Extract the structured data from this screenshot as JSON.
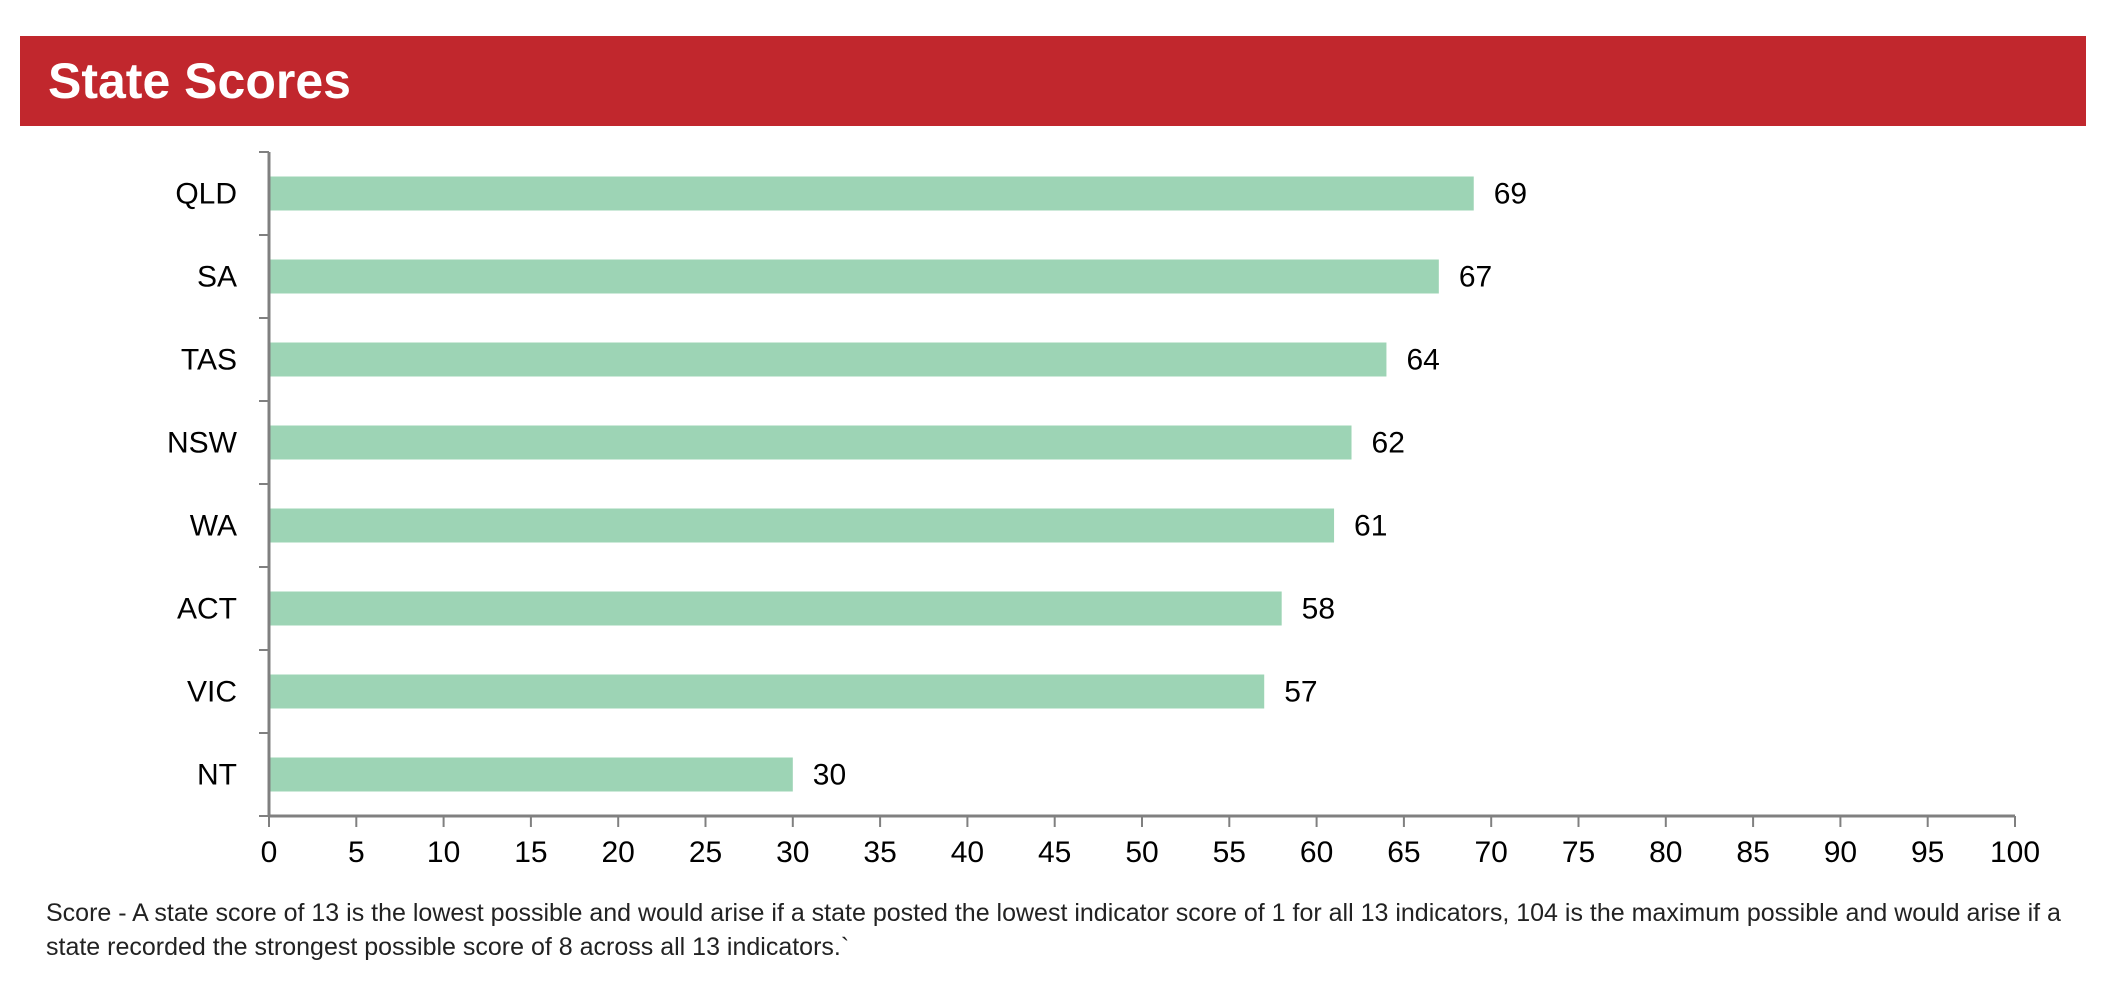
{
  "header": {
    "title": "State Scores"
  },
  "colors": {
    "header_bg": "#c1272d",
    "bar": "#9dd4b5",
    "axis": "#808080",
    "text": "#000000"
  },
  "chart_data": {
    "type": "bar",
    "orientation": "horizontal",
    "title": "State Scores",
    "categories": [
      "QLD",
      "SA",
      "TAS",
      "NSW",
      "WA",
      "ACT",
      "VIC",
      "NT"
    ],
    "values": [
      69,
      67,
      64,
      62,
      61,
      58,
      57,
      30
    ],
    "xlim": [
      0,
      100
    ],
    "xticks": [
      0,
      5,
      10,
      15,
      20,
      25,
      30,
      35,
      40,
      45,
      50,
      55,
      60,
      65,
      70,
      75,
      80,
      85,
      90,
      95,
      100
    ],
    "grid": false,
    "data_labels": true
  },
  "footnote": "Score  - A state score of 13 is the lowest possible and would arise if a state posted the lowest indicator score of 1 for all 13 indicators, 104 is the maximum possible and would arise if a state recorded the strongest possible score of 8 across all 13 indicators.`"
}
